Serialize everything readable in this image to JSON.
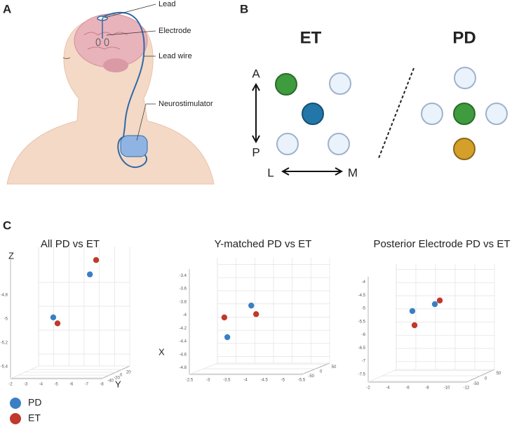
{
  "panel_a": {
    "label": "A",
    "annotations": [
      "Lead",
      "Electrode",
      "Lead wire",
      "Neurostimulator"
    ]
  },
  "panel_b": {
    "label": "B",
    "groups": [
      "ET",
      "PD"
    ],
    "directions": {
      "anterior": "A",
      "posterior": "P",
      "lateral": "L",
      "medial": "M"
    }
  },
  "panel_c": {
    "label": "C",
    "axis_labels": {
      "z": "Z",
      "x": "X",
      "y": "Y"
    },
    "legend": [
      {
        "name": "PD",
        "color": "#3a7fc4"
      },
      {
        "name": "ET",
        "color": "#c0392b"
      }
    ],
    "plots": [
      {
        "title": "All PD vs ET",
        "xlim": [
          -2,
          -8
        ],
        "xticks": [
          -2,
          -3,
          -4,
          -5,
          -6,
          -7,
          -8
        ],
        "ylim": [
          -45,
          45
        ],
        "yticks": [
          -40,
          -20,
          0,
          20
        ],
        "zlim": [
          -5.5,
          -4.5
        ],
        "zticks": [
          -5.4,
          -5.2,
          -5,
          -4.8
        ],
        "series": [
          {
            "x": [
              -6.3,
              -3.89
            ],
            "y": [
              0,
              0
            ],
            "z": [
              -4.68,
              -5.04
            ]
          },
          {
            "x": [
              -6.71,
              -4.17
            ],
            "y": [
              0,
              0
            ],
            "z": [
              -4.56,
              -5.09
            ]
          }
        ]
      },
      {
        "title": "Y-matched PD vs ET",
        "xlim": [
          -2.5,
          -5.5
        ],
        "xticks": [
          -2.5,
          -3,
          -3.5,
          -4,
          -4.5,
          -5,
          -5.5
        ],
        "ylim": [
          -60,
          60
        ],
        "yticks": [
          -50,
          0,
          50
        ],
        "zlim": [
          -4.9,
          -3.3
        ],
        "zticks": [
          -4.8,
          -4.6,
          -4.4,
          -4.2,
          -4,
          -3.8,
          -3.6,
          -3.4
        ],
        "series": [
          {
            "x": [
              -3.78,
              -3.14
            ],
            "y": [
              0,
              0
            ],
            "z": [
              -3.94,
              -4.42
            ]
          },
          {
            "x": [
              -3.91,
              -3.06
            ],
            "y": [
              0,
              0
            ],
            "z": [
              -4.07,
              -4.12
            ]
          }
        ]
      },
      {
        "title": "Posterior Electrode PD vs ET",
        "xlim": [
          -2,
          -12
        ],
        "xticks": [
          -2,
          -4,
          -6,
          -8,
          -10,
          -12
        ],
        "ylim": [
          -60,
          60
        ],
        "yticks": [
          -50,
          0,
          50
        ],
        "zlim": [
          -7.8,
          -3.8
        ],
        "zticks": [
          -7.5,
          -7,
          -6.5,
          -6,
          -5.5,
          -5,
          -4.5,
          -4
        ],
        "series": [
          {
            "x": [
              -5.07,
              -7.36
            ],
            "y": [
              0,
              0
            ],
            "z": [
              -5.34,
              -5.08
            ]
          },
          {
            "x": [
              -7.86,
              -5.29
            ],
            "y": [
              0,
              0
            ],
            "z": [
              -4.94,
              -5.88
            ]
          }
        ]
      }
    ]
  }
}
